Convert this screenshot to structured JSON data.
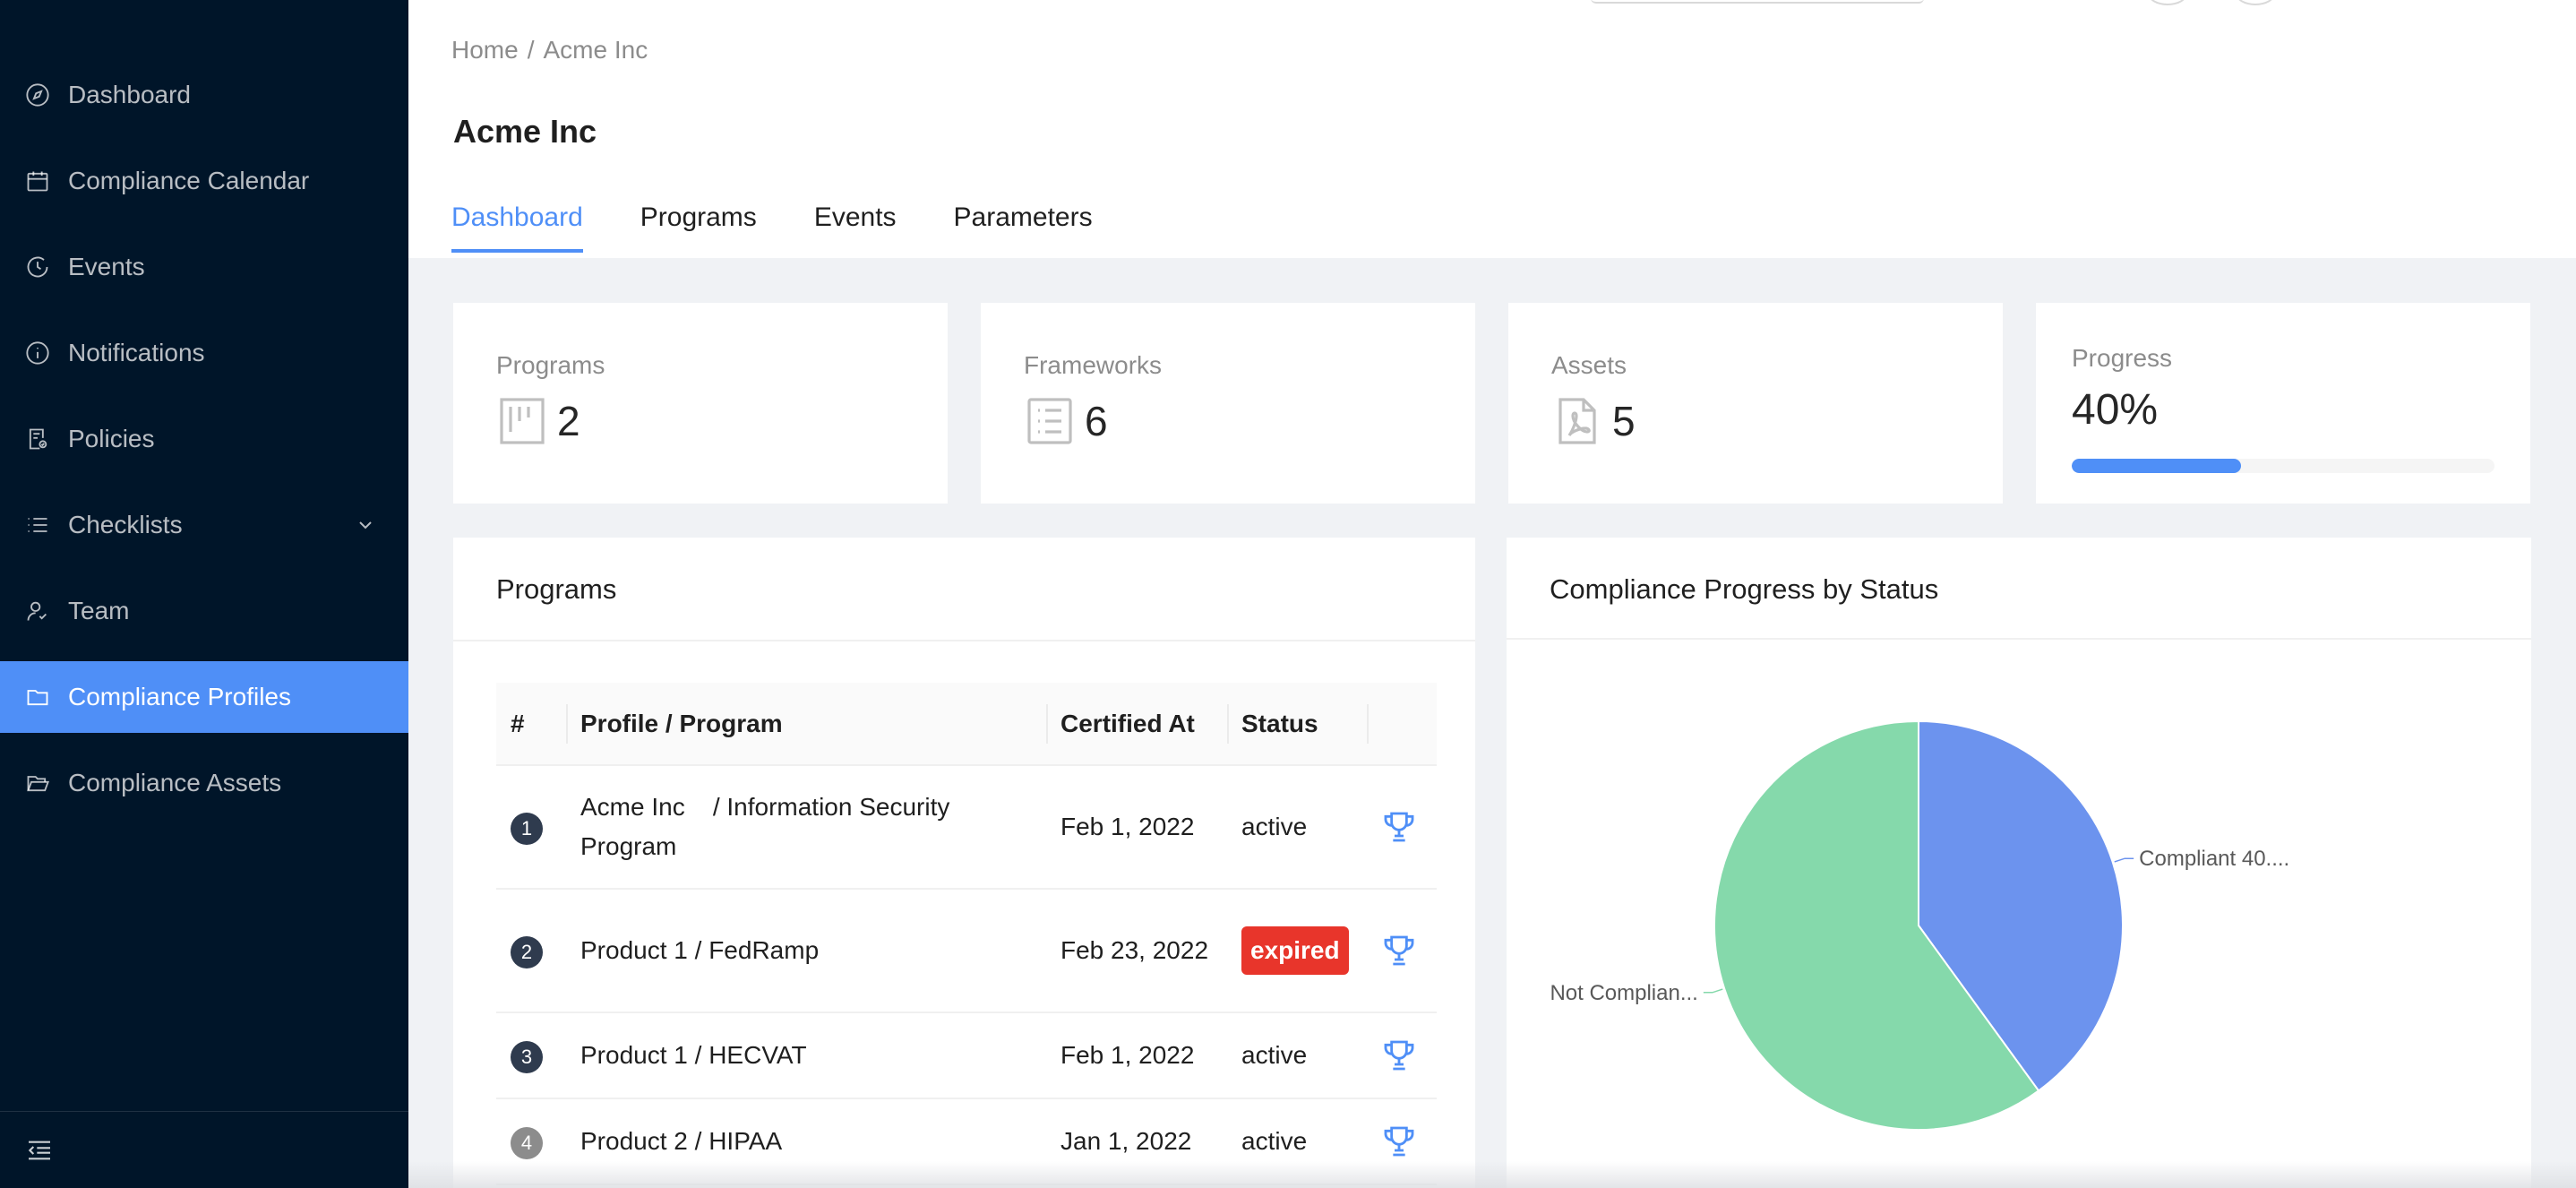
{
  "sidebar": {
    "items": [
      {
        "label": "Dashboard",
        "icon": "compass-icon",
        "active": false
      },
      {
        "label": "Compliance Calendar",
        "icon": "calendar-icon",
        "active": false
      },
      {
        "label": "Events",
        "icon": "clock-icon",
        "active": false
      },
      {
        "label": "Notifications",
        "icon": "info-icon",
        "active": false
      },
      {
        "label": "Policies",
        "icon": "policy-icon",
        "active": false
      },
      {
        "label": "Checklists",
        "icon": "list-icon",
        "active": false,
        "has_submenu": true
      },
      {
        "label": "Team",
        "icon": "team-icon",
        "active": false
      },
      {
        "label": "Compliance Profiles",
        "icon": "folder-icon",
        "active": true
      },
      {
        "label": "Compliance Assets",
        "icon": "folder-open-icon",
        "active": false
      }
    ],
    "collapse_icon": "menu-fold-icon"
  },
  "breadcrumb": {
    "home": "Home",
    "separator": "/",
    "current": "Acme Inc"
  },
  "page": {
    "title": "Acme Inc"
  },
  "tabs": [
    {
      "label": "Dashboard",
      "active": true
    },
    {
      "label": "Programs",
      "active": false
    },
    {
      "label": "Events",
      "active": false
    },
    {
      "label": "Parameters",
      "active": false
    }
  ],
  "stats": {
    "programs": {
      "label": "Programs",
      "value": "2",
      "icon": "project-icon"
    },
    "frameworks": {
      "label": "Frameworks",
      "value": "6",
      "icon": "list-doc-icon"
    },
    "assets": {
      "label": "Assets",
      "value": "5",
      "icon": "pdf-file-icon"
    },
    "progress": {
      "label": "Progress",
      "value": "40%",
      "percent": 40
    }
  },
  "programs_panel": {
    "title": "Programs",
    "columns": [
      "#",
      "Profile / Program",
      "Certified At",
      "Status",
      ""
    ],
    "rows": [
      {
        "num": "1",
        "profile": "Acme Inc",
        "program": "/ Information Security Program",
        "certified_at": "Feb 1, 2022",
        "status": "active"
      },
      {
        "num": "2",
        "profile": "Product 1",
        "program": "/ FedRamp",
        "certified_at": "Feb 23, 2022",
        "status": "expired"
      },
      {
        "num": "3",
        "profile": "Product 1",
        "program": "/ HECVAT",
        "certified_at": "Feb 1, 2022",
        "status": "active"
      },
      {
        "num": "4",
        "profile": "Product 2",
        "program": "/ HIPAA",
        "certified_at": "Jan 1, 2022",
        "status": "active"
      }
    ],
    "row_icon": "trophy-icon"
  },
  "chart_panel": {
    "title": "Compliance Progress by Status"
  },
  "chart_data": {
    "type": "pie",
    "title": "Compliance Progress by Status",
    "slices": [
      {
        "label": "Compliant 40....",
        "value": 40,
        "color": "#6c93ee"
      },
      {
        "label": "Not Complian...",
        "value": 60,
        "color": "#85d9ab"
      }
    ]
  },
  "colors": {
    "accent": "#4f8ff7",
    "sidebar_bg": "#001529",
    "expired": "#e8352b",
    "page_bg": "#f0f2f5"
  }
}
